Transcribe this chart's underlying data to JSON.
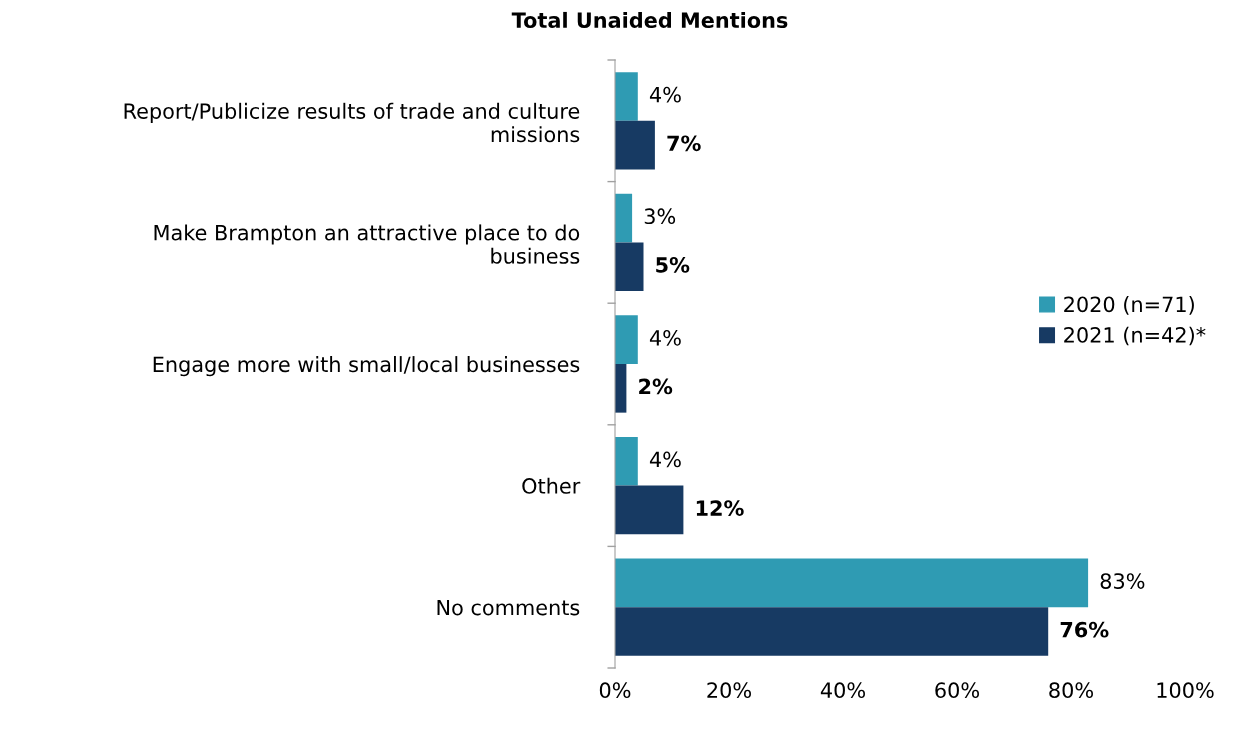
{
  "chart_data": {
    "type": "bar",
    "orientation": "horizontal",
    "title": "Total Unaided Mentions",
    "categories": [
      "Report/Publicize results of trade and culture\nmissions",
      "Make Brampton an attractive place to do\nbusiness",
      "Engage more with small/local businesses",
      "Other",
      "No comments"
    ],
    "series": [
      {
        "name": "2020 (n=71)",
        "color": "#2f9bb3",
        "values": [
          4,
          3,
          4,
          4,
          83
        ],
        "value_labels": [
          "4%",
          "3%",
          "4%",
          "4%",
          "83%"
        ]
      },
      {
        "name": "2021 (n=42)*",
        "color": "#173a63",
        "values": [
          7,
          5,
          2,
          12,
          76
        ],
        "value_labels": [
          "7%",
          "5%",
          "2%",
          "12%",
          "76%"
        ]
      }
    ],
    "xlim": [
      0,
      100
    ],
    "xticks": [
      {
        "value": 0,
        "label": "0%"
      },
      {
        "value": 20,
        "label": "20%"
      },
      {
        "value": 40,
        "label": "40%"
      },
      {
        "value": 60,
        "label": "60%"
      },
      {
        "value": 80,
        "label": "80%"
      },
      {
        "value": 100,
        "label": "100%"
      }
    ],
    "grid": false,
    "legend": "right"
  }
}
